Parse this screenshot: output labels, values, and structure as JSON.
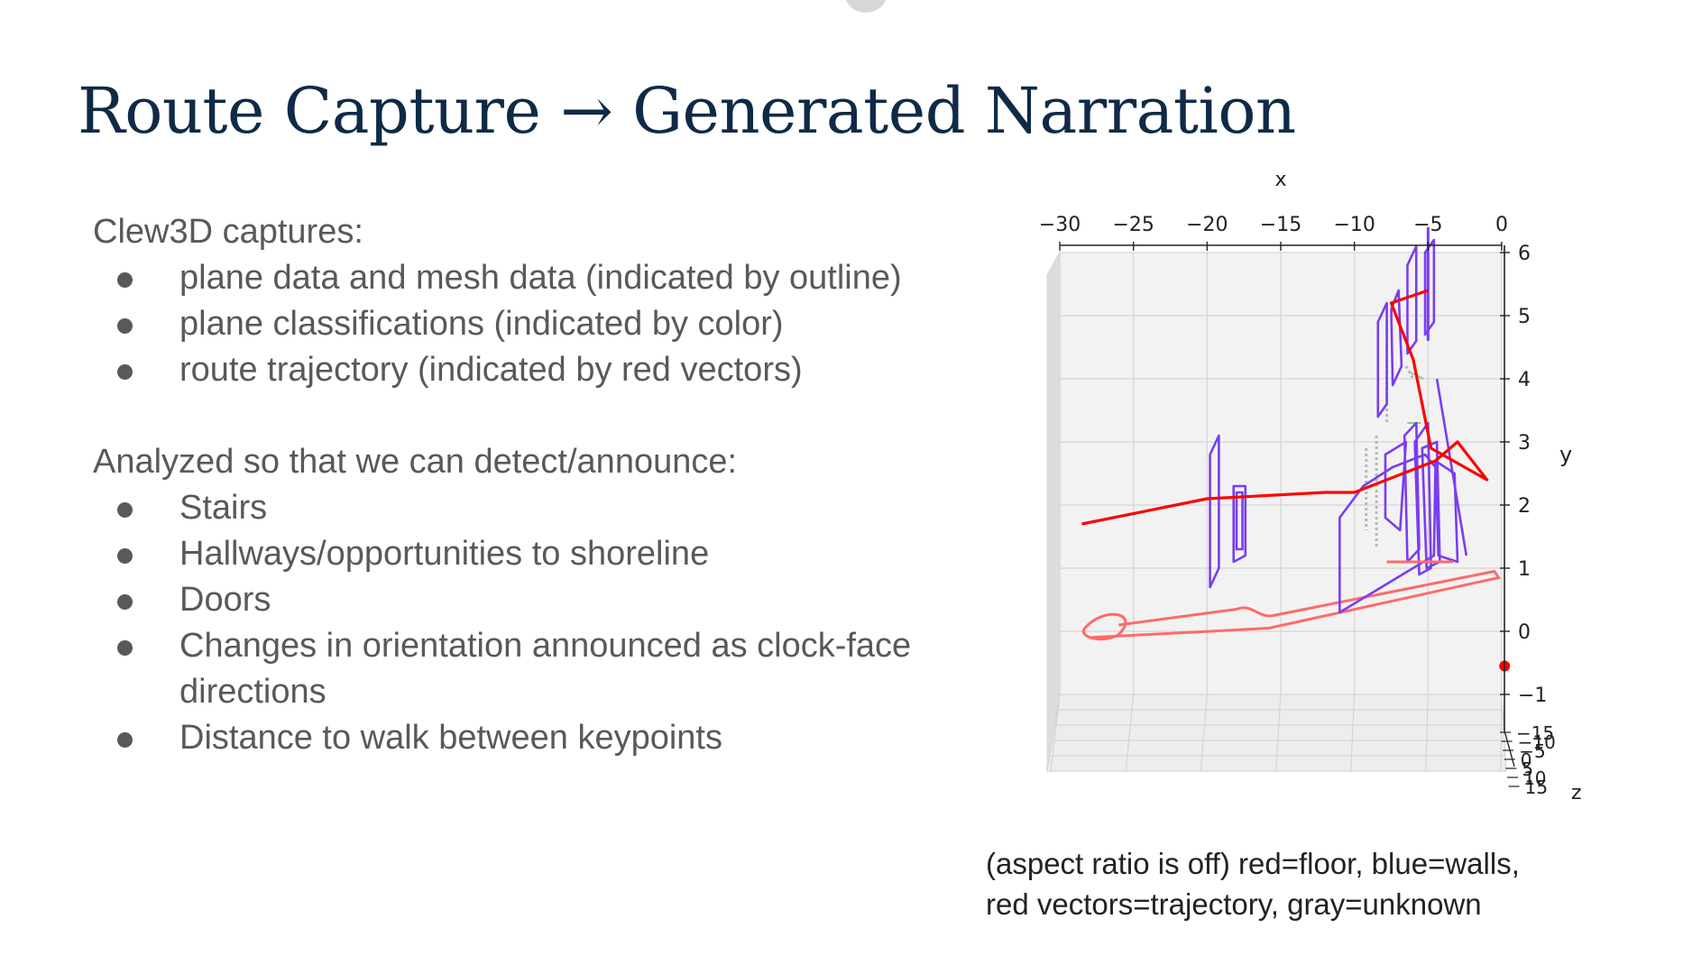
{
  "slide": {
    "title": "Route Capture → Generated Narration",
    "capture_heading": "Clew3D captures:",
    "capture_items": [
      "plane data and mesh data (indicated by outline)",
      "plane classifications (indicated by color)",
      "route trajectory (indicated by red vectors)"
    ],
    "analysis_heading": "Analyzed so that we can detect/announce:",
    "analysis_items": [
      "Stairs",
      "Hallways/opportunities to shoreline",
      "Doors",
      "Changes in orientation announced as clock-face directions",
      "Distance to walk between keypoints"
    ],
    "caption_line1": "(aspect ratio is off) red=floor, blue=walls,",
    "caption_line2": "red vectors=trajectory, gray=unknown"
  },
  "chart_data": {
    "type": "line",
    "xlabel": "x",
    "ylabel": "y",
    "zlabel": "z",
    "x_ticks": [
      "−30",
      "−25",
      "−20",
      "−15",
      "−10",
      "−5",
      "0"
    ],
    "y_ticks": [
      "6",
      "5",
      "4",
      "3",
      "2",
      "1",
      "0",
      "−1"
    ],
    "z_ticks": [
      "−15",
      "−10",
      "−5",
      "0",
      "5",
      "10",
      "15"
    ],
    "xlim": [
      -30,
      0
    ],
    "ylim": [
      -1,
      6
    ],
    "trajectory_xy": [
      [
        -28.5,
        1.7
      ],
      [
        -20,
        2.1
      ],
      [
        -12,
        2.2
      ],
      [
        -10,
        2.2
      ],
      [
        -4.5,
        2.7
      ],
      [
        -3,
        3.0
      ],
      [
        -1,
        2.4
      ],
      [
        -4.8,
        2.9
      ],
      [
        -6,
        4.3
      ],
      [
        -7.5,
        5.2
      ],
      [
        -5,
        5.4
      ]
    ],
    "colors": {
      "floor": "#ff6a6a",
      "walls": "#7a3df0",
      "trajectory": "#ff0000",
      "unknown": "#b8b8b8",
      "grid": "#d6d6d6",
      "pane": "#f2f2f2"
    }
  }
}
